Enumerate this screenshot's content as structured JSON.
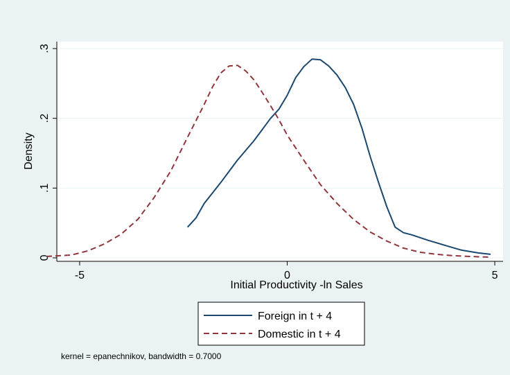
{
  "chart_data": {
    "type": "line",
    "title": "",
    "xlabel": "Initial Productivity -ln Sales",
    "ylabel": "Density",
    "xlim": [
      -5.55,
      5.2
    ],
    "ylim": [
      -0.005,
      0.31
    ],
    "xticks": [
      -5,
      0,
      5
    ],
    "xtick_labels": [
      "-5",
      "0",
      "5"
    ],
    "yticks": [
      0,
      0.1,
      0.2,
      0.3
    ],
    "ytick_labels": [
      "0",
      ".1",
      ".2",
      ".3"
    ],
    "grid": true,
    "legend_position": "bottom",
    "note": "kernel = epanechnikov, bandwidth = 0.7000",
    "series": [
      {
        "name": "Foreign in t + 4",
        "color": "#1a476f",
        "dash": "solid",
        "x": [
          -2.4,
          -2.2,
          -2.0,
          -1.6,
          -1.2,
          -0.8,
          -0.4,
          -0.2,
          0.0,
          0.2,
          0.4,
          0.6,
          0.8,
          1.0,
          1.2,
          1.4,
          1.6,
          1.8,
          2.0,
          2.2,
          2.4,
          2.6,
          2.8,
          3.0,
          3.4,
          3.8,
          4.2,
          4.6,
          4.9
        ],
        "y": [
          0.044,
          0.057,
          0.078,
          0.108,
          0.14,
          0.168,
          0.2,
          0.213,
          0.233,
          0.258,
          0.274,
          0.285,
          0.284,
          0.275,
          0.262,
          0.244,
          0.22,
          0.186,
          0.145,
          0.108,
          0.073,
          0.044,
          0.036,
          0.033,
          0.025,
          0.018,
          0.011,
          0.007,
          0.005
        ]
      },
      {
        "name": "Domestic in t + 4",
        "color": "#90353b",
        "dash": "dashed",
        "x": [
          -5.8,
          -5.2,
          -4.8,
          -4.4,
          -4.0,
          -3.6,
          -3.2,
          -2.8,
          -2.4,
          -2.0,
          -1.8,
          -1.6,
          -1.4,
          -1.2,
          -1.0,
          -0.8,
          -0.6,
          -0.4,
          -0.2,
          0.0,
          0.4,
          0.8,
          1.2,
          1.6,
          2.0,
          2.4,
          2.8,
          3.2,
          3.6,
          4.0,
          4.4,
          4.9
        ],
        "y": [
          0.002,
          0.004,
          0.01,
          0.02,
          0.034,
          0.055,
          0.087,
          0.125,
          0.173,
          0.22,
          0.245,
          0.265,
          0.275,
          0.276,
          0.268,
          0.255,
          0.237,
          0.218,
          0.198,
          0.176,
          0.14,
          0.105,
          0.078,
          0.055,
          0.037,
          0.024,
          0.014,
          0.008,
          0.005,
          0.003,
          0.002,
          0.001
        ]
      }
    ]
  }
}
